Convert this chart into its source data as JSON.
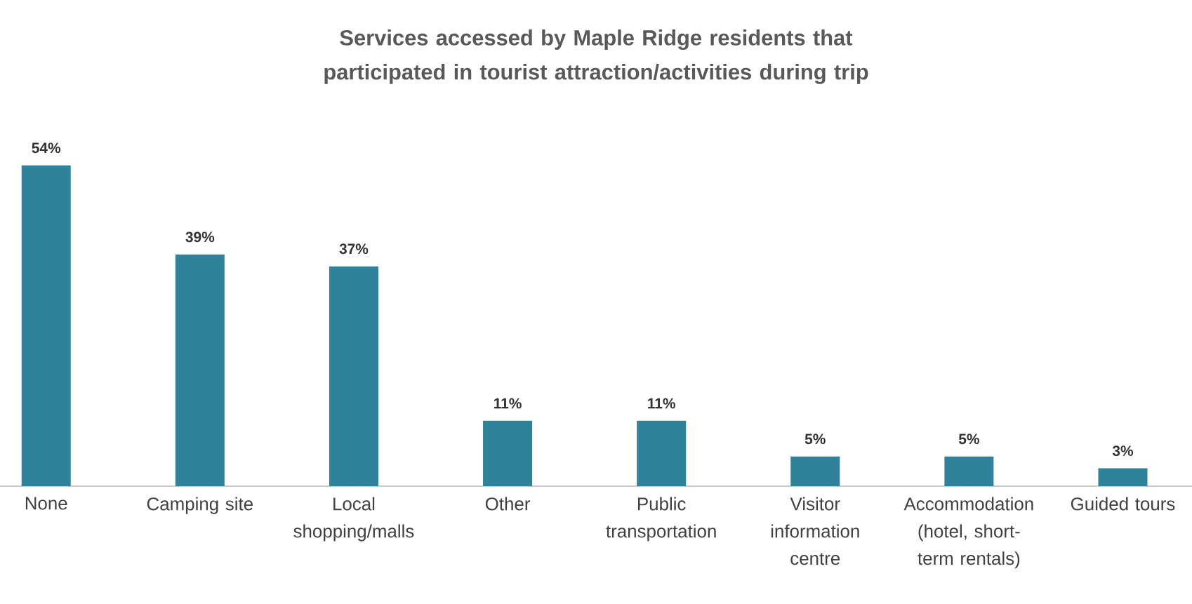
{
  "chart_data": {
    "type": "bar",
    "title": "Services accessed by Maple Ridge residents that participated in tourist attraction/activities during trip",
    "categories": [
      "None",
      "Camping site",
      "Local shopping/malls",
      "Other",
      "Public transportation",
      "Visitor information centre",
      "Accommodation (hotel, short-term rentals)",
      "Guided tours"
    ],
    "values": [
      54,
      39,
      37,
      11,
      11,
      5,
      5,
      3
    ],
    "value_labels": [
      "54%",
      "39%",
      "37%",
      "11%",
      "11%",
      "5%",
      "5%",
      "3%"
    ],
    "color": "#2e8299"
  }
}
